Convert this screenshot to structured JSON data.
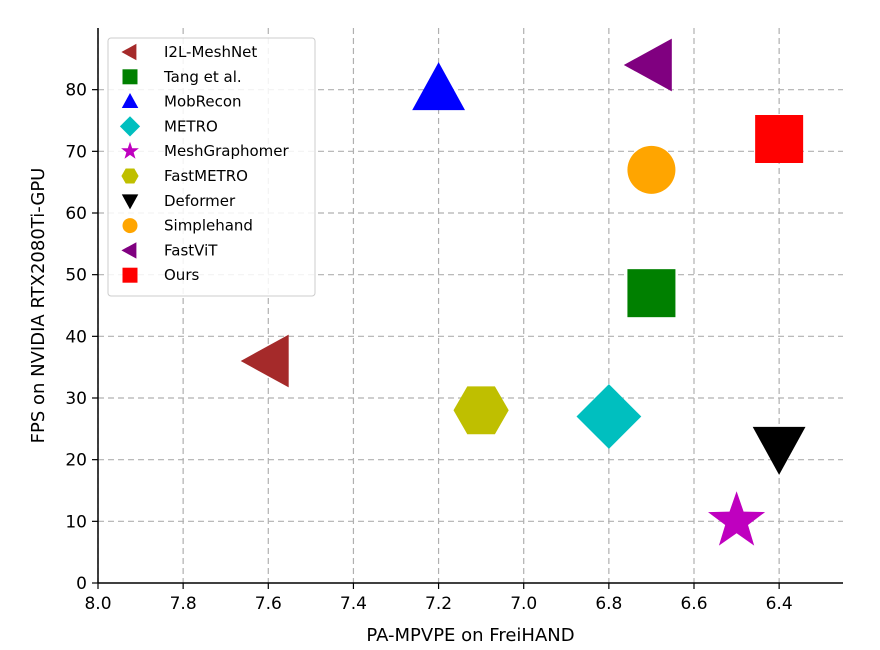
{
  "chart_data": {
    "type": "scatter",
    "xlabel": "PA-MPVPE on FreiHAND",
    "ylabel": "FPS on NVIDIA RTX2080Ti-GPU",
    "xlim": [
      8.0,
      6.25
    ],
    "x_inverted": true,
    "ylim": [
      0,
      90
    ],
    "xticks": [
      "8.0",
      "7.8",
      "7.6",
      "7.4",
      "7.2",
      "7.0",
      "6.8",
      "6.6",
      "6.4"
    ],
    "xtick_values": [
      8.0,
      7.8,
      7.6,
      7.4,
      7.2,
      7.0,
      6.8,
      6.6,
      6.4
    ],
    "yticks": [
      "0",
      "10",
      "20",
      "30",
      "40",
      "50",
      "60",
      "70",
      "80"
    ],
    "ytick_values": [
      0,
      10,
      20,
      30,
      40,
      50,
      60,
      70,
      80
    ],
    "grid": true,
    "legend_position": "top-left",
    "series": [
      {
        "name": "I2L-MeshNet",
        "x": 7.6,
        "y": 36,
        "marker": "triangle-left",
        "color": "#a52a2a"
      },
      {
        "name": "Tang et al.",
        "x": 6.7,
        "y": 47,
        "marker": "square",
        "color": "#008000"
      },
      {
        "name": "MobRecon",
        "x": 7.2,
        "y": 80,
        "marker": "triangle-up",
        "color": "#0000ff"
      },
      {
        "name": "METRO",
        "x": 6.8,
        "y": 27,
        "marker": "diamond",
        "color": "#00bfbf"
      },
      {
        "name": "MeshGraphomer",
        "x": 6.5,
        "y": 10,
        "marker": "star",
        "color": "#bf00bf"
      },
      {
        "name": "FastMETRO",
        "x": 7.1,
        "y": 28,
        "marker": "hexagon",
        "color": "#bfbf00"
      },
      {
        "name": "Deformer",
        "x": 6.4,
        "y": 22,
        "marker": "triangle-down",
        "color": "#000000"
      },
      {
        "name": "Simplehand",
        "x": 6.7,
        "y": 67,
        "marker": "circle",
        "color": "#ffa500"
      },
      {
        "name": "FastViT",
        "x": 6.7,
        "y": 84,
        "marker": "triangle-left",
        "color": "#800080"
      },
      {
        "name": "Ours",
        "x": 6.4,
        "y": 72,
        "marker": "square",
        "color": "#ff0000"
      }
    ]
  }
}
